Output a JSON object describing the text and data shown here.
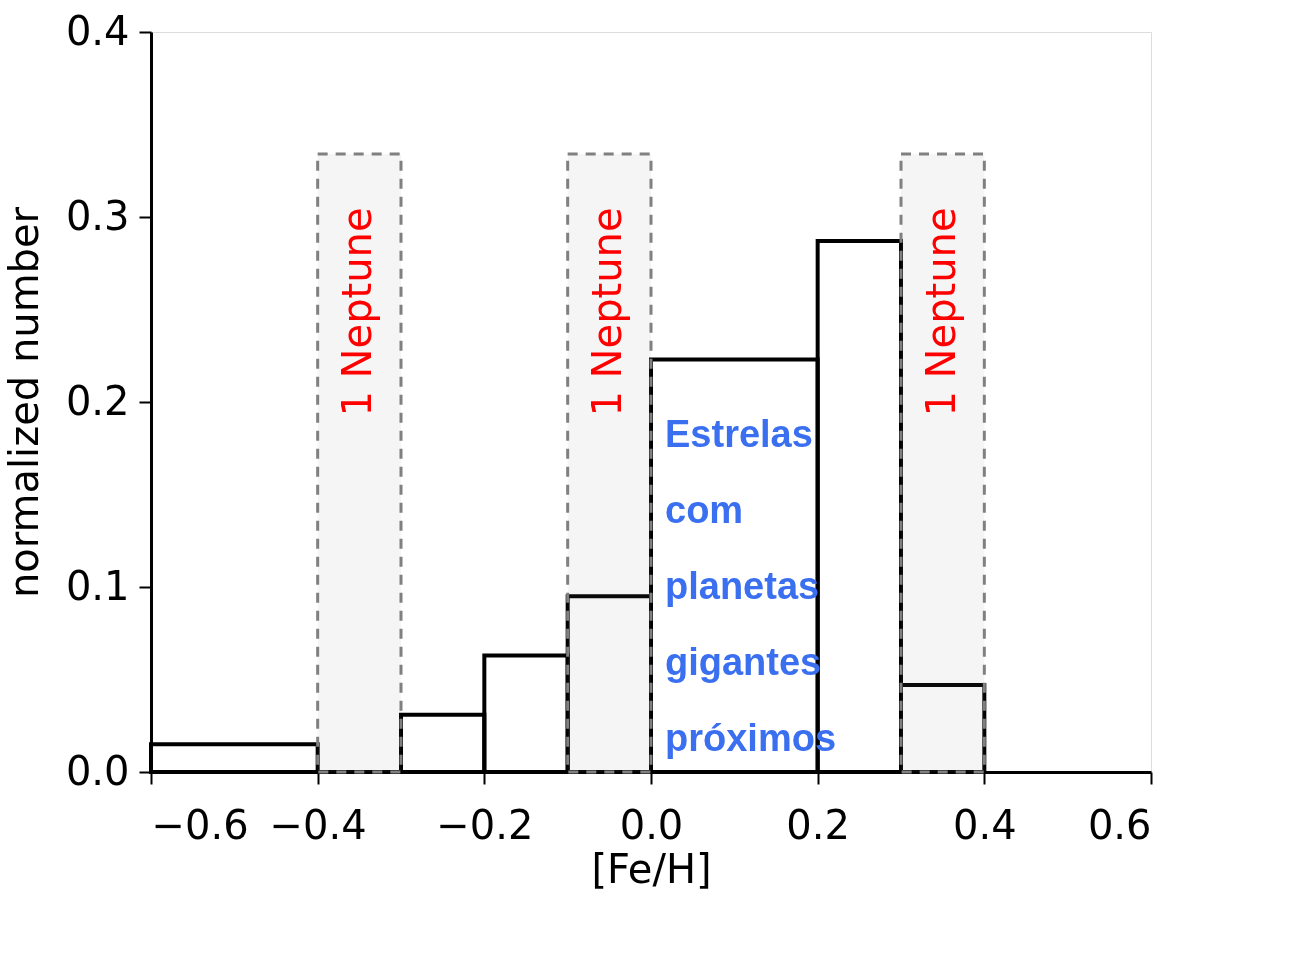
{
  "chart_data": {
    "type": "histogram",
    "bins": [
      -0.6,
      -0.4,
      -0.3,
      -0.2,
      -0.1,
      0.0,
      0.2,
      0.3,
      0.4
    ],
    "values": [
      0.015,
      0.0,
      0.031,
      0.063,
      0.095,
      0.223,
      0.287,
      0.047
    ],
    "color": "#000000",
    "xlabel": "[Fe/H]",
    "ylabel": "normalized number",
    "xlim": [
      -0.6,
      0.6
    ],
    "ylim": [
      0,
      0.4
    ],
    "xticks": [
      {
        "value": -0.6,
        "label": "−0.6"
      },
      {
        "value": -0.4,
        "label": "−0.4"
      },
      {
        "value": -0.2,
        "label": "−0.2"
      },
      {
        "value": 0,
        "label": "0.0"
      },
      {
        "value": 0.2,
        "label": "0.2"
      },
      {
        "value": 0.4,
        "label": "0.4"
      },
      {
        "value": 0.6,
        "label": "0.6"
      }
    ],
    "yticks": [
      {
        "value": 0,
        "label": "0.0"
      },
      {
        "value": 0.1,
        "label": "0.1"
      },
      {
        "value": 0.2,
        "label": "0.2"
      },
      {
        "value": 0.3,
        "label": "0.3"
      },
      {
        "value": 0.4,
        "label": "0.4"
      }
    ],
    "grid": false,
    "bands": [
      {
        "axis": "x",
        "from": -0.4,
        "to": -0.3,
        "label": "1 Neptune",
        "color": "#808080"
      },
      {
        "axis": "x",
        "from": -0.1,
        "to": 0.0,
        "label": "1 Neptune",
        "color": "#808080"
      },
      {
        "axis": "x",
        "from": 0.3,
        "to": 0.4,
        "label": "1 Neptune",
        "color": "#808080"
      }
    ],
    "annotations": [
      "Estrelas com planetas gigantes próximos"
    ]
  }
}
